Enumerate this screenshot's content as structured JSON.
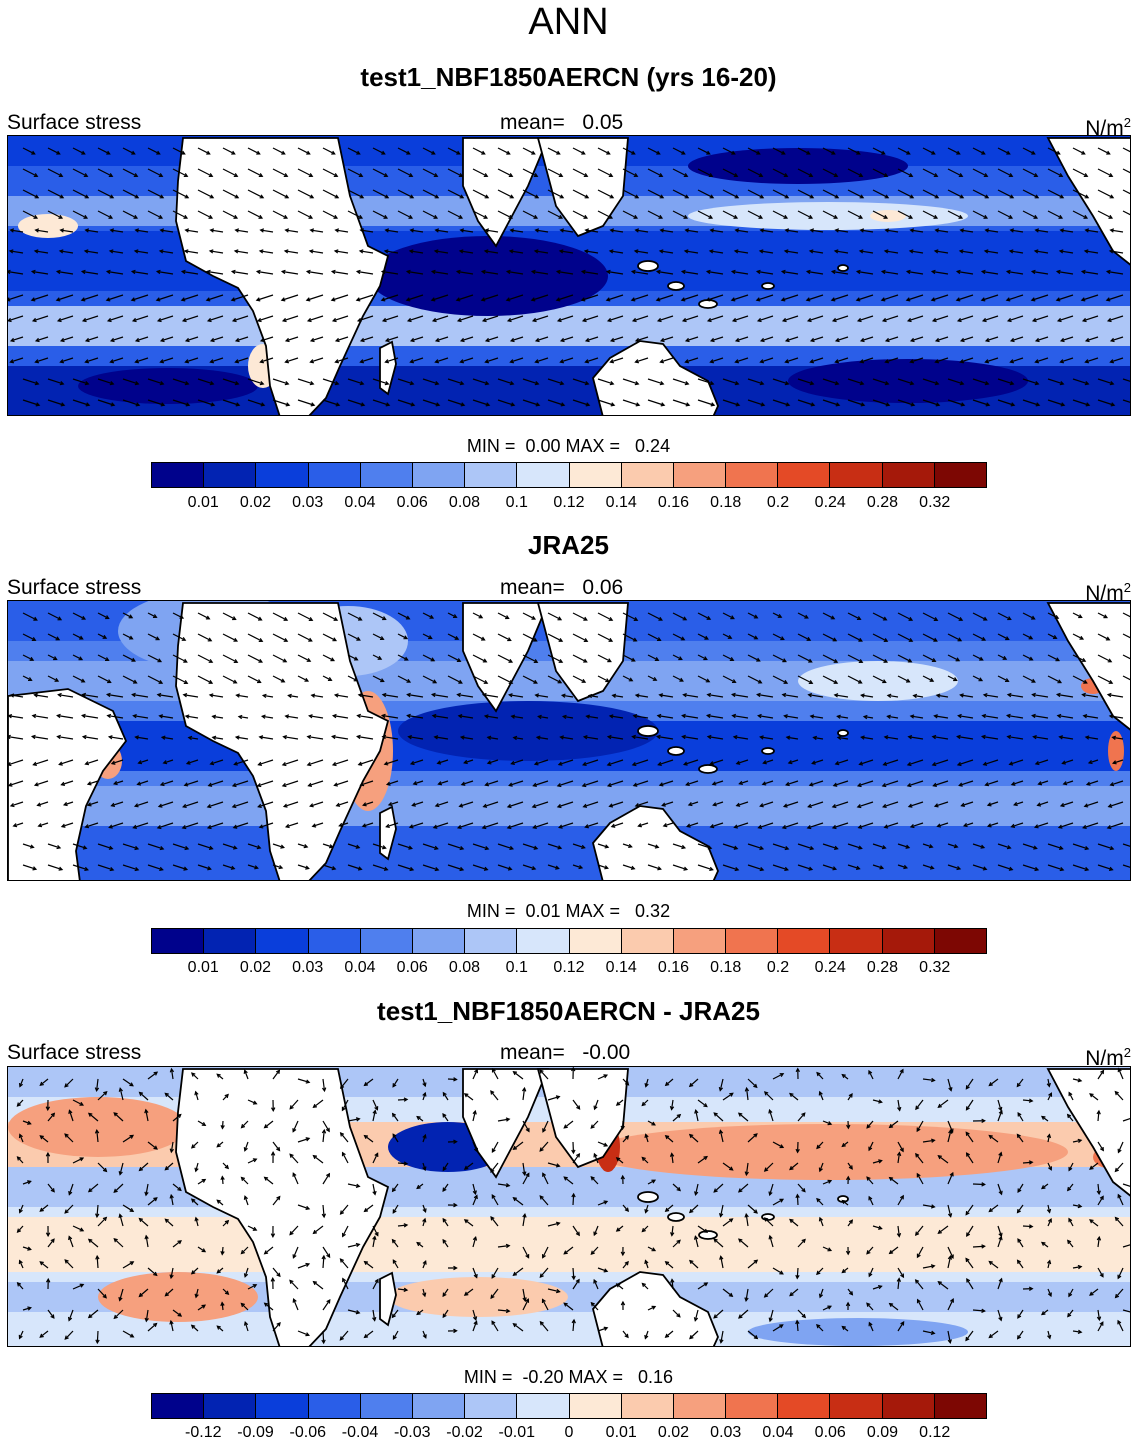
{
  "title": "ANN",
  "colors": {
    "seq": [
      "#00028c",
      "#0223b2",
      "#0a3edb",
      "#2a5ee8",
      "#4f7fee",
      "#7fa4f2",
      "#adc6f7",
      "#d7e6fb",
      "#fde9d6",
      "#fbcbae",
      "#f6a07e",
      "#f0744f",
      "#e44a26",
      "#c82e14",
      "#a5190a",
      "#7d0703"
    ],
    "land": "#ffffff"
  },
  "panels": [
    {
      "title": "test1_NBF1850AERCN (yrs 16-20)",
      "variable": "Surface stress",
      "mean_label": "mean=",
      "mean_value": "0.05",
      "units": "N/m",
      "units_sup": "2",
      "min_label": "MIN =",
      "min_value": "0.00",
      "max_label": "MAX =",
      "max_value": "0.24",
      "levels": [
        "0.01",
        "0.02",
        "0.03",
        "0.04",
        "0.06",
        "0.08",
        "0.1",
        "0.12",
        "0.14",
        "0.16",
        "0.18",
        "0.2",
        "0.24",
        "0.28",
        "0.32"
      ]
    },
    {
      "title": "JRA25",
      "variable": "Surface stress",
      "mean_label": "mean=",
      "mean_value": "0.06",
      "units": "N/m",
      "units_sup": "2",
      "min_label": "MIN =",
      "min_value": "0.01",
      "max_label": "MAX =",
      "max_value": "0.32",
      "levels": [
        "0.01",
        "0.02",
        "0.03",
        "0.04",
        "0.06",
        "0.08",
        "0.1",
        "0.12",
        "0.14",
        "0.16",
        "0.18",
        "0.2",
        "0.24",
        "0.28",
        "0.32"
      ]
    },
    {
      "title": "test1_NBF1850AERCN - JRA25",
      "variable": "Surface stress",
      "mean_label": "mean=",
      "mean_value": "-0.00",
      "units": "N/m",
      "units_sup": "2",
      "min_label": "MIN =",
      "min_value": "-0.20",
      "max_label": "MAX =",
      "max_value": "0.16",
      "levels": [
        "-0.12",
        "-0.09",
        "-0.06",
        "-0.04",
        "-0.03",
        "-0.02",
        "-0.01",
        "0",
        "0.01",
        "0.02",
        "0.03",
        "0.04",
        "0.06",
        "0.09",
        "0.12"
      ]
    }
  ]
}
